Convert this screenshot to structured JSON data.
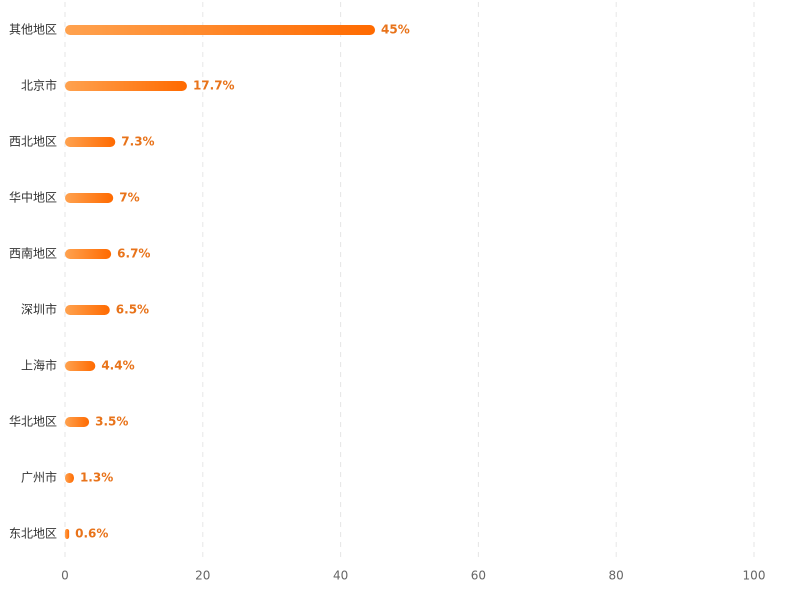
{
  "chart_data": {
    "type": "bar",
    "orientation": "horizontal",
    "categories": [
      "其他地区",
      "北京市",
      "西北地区",
      "华中地区",
      "西南地区",
      "深圳市",
      "上海市",
      "华北地区",
      "广州市",
      "东北地区"
    ],
    "values": [
      45,
      17.7,
      7.3,
      7,
      6.7,
      6.5,
      4.4,
      3.5,
      1.3,
      0.6
    ],
    "value_labels": [
      "45%",
      "17.7%",
      "7.3%",
      "7%",
      "6.7%",
      "6.5%",
      "4.4%",
      "3.5%",
      "1.3%",
      "0.6%"
    ],
    "gradient": [
      "#ffa24f",
      "#ff6a00"
    ],
    "xlim": [
      0,
      100
    ],
    "xticks": [
      0,
      20,
      40,
      60,
      80,
      100
    ],
    "grid": true
  }
}
